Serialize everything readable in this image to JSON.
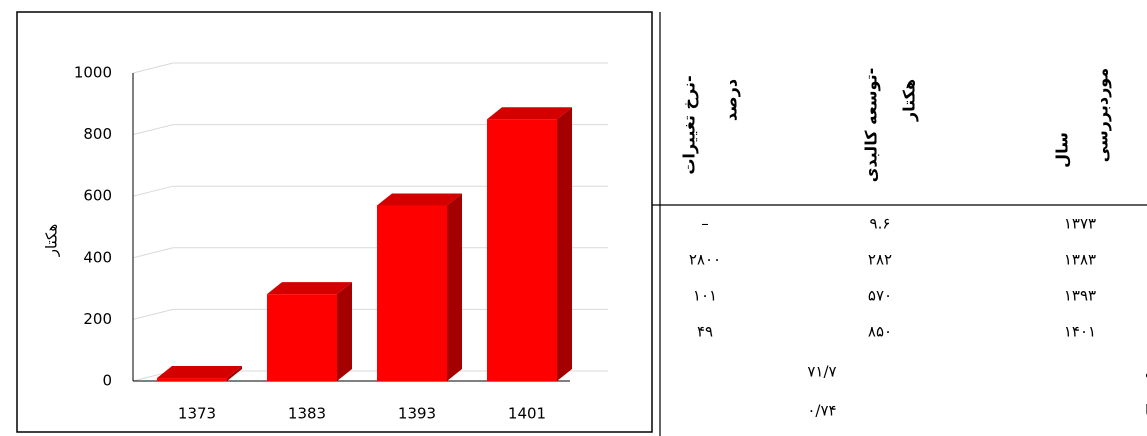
{
  "chart_data": {
    "type": "bar",
    "y_label": "هکتار",
    "categories": [
      "1373",
      "1383",
      "1393",
      "1401"
    ],
    "values": [
      9.6,
      282,
      570,
      850
    ],
    "color": "#ff0000",
    "ylim": [
      0,
      1000
    ],
    "yticks": [
      0,
      200,
      400,
      600,
      800,
      1000
    ],
    "grid": true
  },
  "table": {
    "headers": [
      [
        "سال",
        "موردبررسی"
      ],
      [
        "توسعه کالبدی-",
        "هکتار"
      ],
      [
        "نرخ تغییرات-",
        "درصد"
      ]
    ],
    "rows": [
      [
        "۱۳۷۳",
        "۹.۶",
        "–"
      ],
      [
        "۱۳۸۳",
        "۲۸۲",
        "۲۸۰۰"
      ],
      [
        "۱۳۹۳",
        "۵۷۰",
        "۱۰۱"
      ],
      [
        "۱۴۰۱",
        "۸۵۰",
        "۴۹"
      ]
    ],
    "summary": [
      [
        "صحت کلی",
        "۷۱/۷"
      ],
      [
        "ضریب کاپا",
        "۰/۷۴"
      ]
    ]
  }
}
